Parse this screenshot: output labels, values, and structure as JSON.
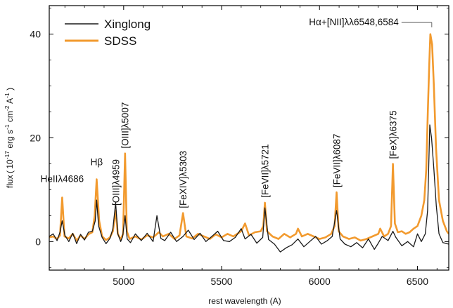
{
  "chart_data": {
    "type": "line",
    "xlabel": "rest wavelength (A)",
    "ylabel": "flux (10^-17 erg s^-1 cm^-2 A^-1)",
    "ylabel_parts": {
      "prefix": "flux ( 10",
      "exp1": "-17",
      "erg": "erg s",
      "exp2": "-1",
      "cm": "cm",
      "exp3": "-2",
      "A": "A",
      "exp4": "-1",
      "close": ")"
    },
    "xlim": [
      4620,
      6660
    ],
    "ylim": [
      -5.5,
      45.5
    ],
    "xticks": [
      5000,
      5500,
      6000,
      6500
    ],
    "yticks": [
      0,
      20,
      40
    ],
    "xticks_minor": [
      4700,
      4800,
      4900,
      5100,
      5200,
      5300,
      5400,
      5600,
      5700,
      5800,
      5900,
      6100,
      6200,
      6300,
      6400,
      6600
    ],
    "yticks_minor": [
      -5,
      5,
      10,
      15,
      25,
      30,
      35,
      45
    ],
    "grid": false,
    "legend_position": "top-left",
    "colors": {
      "Xinglong": "#1a1a1a",
      "SDSS": "#f29a2e"
    },
    "series": [
      {
        "name": "Xinglong",
        "x": [
          4620,
          4640,
          4660,
          4675,
          4686,
          4700,
          4720,
          4740,
          4760,
          4780,
          4800,
          4820,
          4840,
          4855,
          4862,
          4872,
          4890,
          4910,
          4930,
          4945,
          4959,
          4970,
          4985,
          4995,
          5007,
          5018,
          5035,
          5060,
          5090,
          5120,
          5150,
          5170,
          5190,
          5210,
          5240,
          5270,
          5303,
          5330,
          5360,
          5390,
          5420,
          5450,
          5480,
          5510,
          5540,
          5570,
          5600,
          5620,
          5650,
          5680,
          5710,
          5721,
          5740,
          5770,
          5800,
          5830,
          5860,
          5890,
          5920,
          5950,
          5980,
          6010,
          6040,
          6065,
          6087,
          6105,
          6130,
          6160,
          6190,
          6220,
          6250,
          6280,
          6300,
          6320,
          6350,
          6375,
          6390,
          6420,
          6450,
          6480,
          6500,
          6520,
          6540,
          6552,
          6563,
          6572,
          6584,
          6596,
          6610,
          6630,
          6660
        ],
        "y": [
          1.0,
          1.5,
          0.2,
          1.8,
          4.0,
          1.2,
          0.0,
          1.6,
          -0.4,
          1.4,
          0.3,
          1.8,
          2.0,
          4.0,
          8.0,
          3.0,
          0.8,
          -0.4,
          0.6,
          2.5,
          7.5,
          1.5,
          0.0,
          1.0,
          5.0,
          0.5,
          -0.2,
          1.5,
          0.2,
          1.6,
          0.0,
          5.0,
          0.6,
          0.2,
          1.8,
          0.0,
          1.0,
          2.2,
          0.4,
          1.6,
          0.0,
          1.0,
          2.0,
          0.2,
          0.0,
          0.8,
          2.5,
          0.5,
          1.4,
          -0.3,
          0.8,
          6.5,
          0.4,
          -0.5,
          -2.0,
          -1.2,
          -0.6,
          0.5,
          -1.0,
          0.0,
          1.0,
          -0.5,
          0.2,
          1.0,
          6.0,
          0.5,
          -0.5,
          -1.0,
          -0.2,
          -1.2,
          0.5,
          -1.5,
          -0.3,
          1.0,
          0.2,
          2.0,
          0.8,
          -0.8,
          0.0,
          -1.0,
          1.5,
          0.0,
          1.5,
          6.0,
          22.5,
          20.0,
          14.0,
          7.0,
          1.5,
          -0.2,
          -0.5
        ]
      },
      {
        "name": "SDSS",
        "x": [
          4620,
          4640,
          4660,
          4675,
          4686,
          4698,
          4720,
          4740,
          4760,
          4780,
          4800,
          4820,
          4840,
          4852,
          4862,
          4875,
          4890,
          4910,
          4930,
          4945,
          4959,
          4970,
          4985,
          4997,
          5007,
          5016,
          5030,
          5060,
          5090,
          5120,
          5150,
          5180,
          5200,
          5230,
          5260,
          5285,
          5303,
          5320,
          5350,
          5380,
          5410,
          5440,
          5470,
          5500,
          5530,
          5560,
          5600,
          5620,
          5640,
          5670,
          5700,
          5713,
          5721,
          5732,
          5760,
          5790,
          5820,
          5850,
          5880,
          5890,
          5910,
          5940,
          5970,
          6000,
          6030,
          6060,
          6077,
          6087,
          6098,
          6120,
          6150,
          6180,
          6210,
          6240,
          6270,
          6300,
          6310,
          6330,
          6350,
          6365,
          6375,
          6385,
          6400,
          6420,
          6440,
          6460,
          6480,
          6500,
          6520,
          6535,
          6545,
          6553,
          6560,
          6566,
          6575,
          6584,
          6595,
          6610,
          6630,
          6650,
          6660
        ],
        "y": [
          0.8,
          1.0,
          0.5,
          1.2,
          8.5,
          1.0,
          0.6,
          1.5,
          0.2,
          1.2,
          0.5,
          1.4,
          1.8,
          5.0,
          12.0,
          4.0,
          1.0,
          0.3,
          0.8,
          2.0,
          6.0,
          1.5,
          0.4,
          1.5,
          17.0,
          2.0,
          0.5,
          1.0,
          0.4,
          1.2,
          0.8,
          1.8,
          1.0,
          1.5,
          0.5,
          1.2,
          5.5,
          1.0,
          0.6,
          1.5,
          1.0,
          0.5,
          1.4,
          0.8,
          1.5,
          1.0,
          2.0,
          3.5,
          1.2,
          1.8,
          2.0,
          3.0,
          7.5,
          2.0,
          1.0,
          0.5,
          1.5,
          0.8,
          1.5,
          2.5,
          1.0,
          1.5,
          1.0,
          0.5,
          0.8,
          1.5,
          3.0,
          9.5,
          2.0,
          1.0,
          0.5,
          0.8,
          0.2,
          0.5,
          1.0,
          1.5,
          2.5,
          1.0,
          1.5,
          3.0,
          15.0,
          3.5,
          1.8,
          2.0,
          1.5,
          1.8,
          2.5,
          3.0,
          5.0,
          8.0,
          14.0,
          25.0,
          34.0,
          40.0,
          38.0,
          30.0,
          18.0,
          8.0,
          4.0,
          2.0,
          1.5
        ]
      }
    ],
    "annotations": [
      {
        "text": "HeIIλ4686",
        "x": 4686,
        "rotation": 0
      },
      {
        "text": "Hβ",
        "x": 4862,
        "rotation": 0
      },
      {
        "text": "[OIII]λ4959",
        "x": 4959,
        "rotation": -90
      },
      {
        "text": "[OIII]λ5007",
        "x": 5007,
        "rotation": -90
      },
      {
        "text": "[FeXIV]λ5303",
        "x": 5303,
        "rotation": -90
      },
      {
        "text": "[FeVII]λ5721",
        "x": 5721,
        "rotation": -90
      },
      {
        "text": "[FeVII]λ6087",
        "x": 6087,
        "rotation": -90
      },
      {
        "text": "[FeX]λ6375",
        "x": 6375,
        "rotation": -90
      },
      {
        "text": "Hα+[NII]λλ6548,6584",
        "x": 6566,
        "rotation": 0,
        "leader": true
      }
    ]
  }
}
